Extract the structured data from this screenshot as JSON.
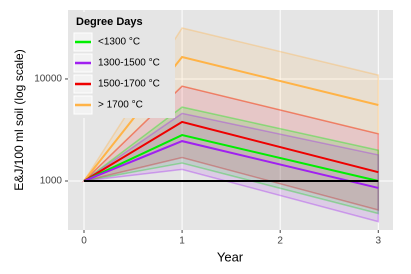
{
  "chart_data": {
    "type": "line",
    "log_y": true,
    "grid": true,
    "legend_position": "top-left",
    "legend_title": "Degree Days",
    "xlabel": "Year",
    "ylabel": "E&J/100 ml soil (log scale)",
    "x": [
      0,
      1,
      3
    ],
    "xlim": [
      -0.163,
      3.15
    ],
    "xticks": [
      0,
      1,
      2,
      3
    ],
    "ylim": [
      331,
      47400
    ],
    "yticks": [
      1000,
      10000
    ],
    "series": [
      {
        "name": "> 1700 °C",
        "color": "#ffb347",
        "values": [
          1000,
          16400,
          5560
        ],
        "lower": [
          1000,
          8500,
          2900
        ],
        "upper": [
          1000,
          31600,
          10900
        ]
      },
      {
        "name": "1500-1700 °C",
        "color": "#ee0000",
        "values": [
          1000,
          3790,
          1220
        ],
        "lower": [
          1000,
          1700,
          520
        ],
        "upper": [
          1000,
          8500,
          2900
        ]
      },
      {
        "name": "<1300 °C",
        "color": "#00ee00",
        "values": [
          1000,
          2820,
          1000
        ],
        "lower": [
          1000,
          1500,
          480
        ],
        "upper": [
          1000,
          5300,
          2000
        ]
      },
      {
        "name": "1300-1500 °C",
        "color": "#a020f0",
        "values": [
          1000,
          2460,
          855
        ],
        "lower": [
          1000,
          1300,
          400
        ],
        "upper": [
          1000,
          4600,
          1800
        ]
      },
      {
        "color": "#000000",
        "values": [
          1000,
          1000,
          1000
        ]
      }
    ],
    "legend_order": [
      2,
      3,
      1,
      0
    ]
  }
}
